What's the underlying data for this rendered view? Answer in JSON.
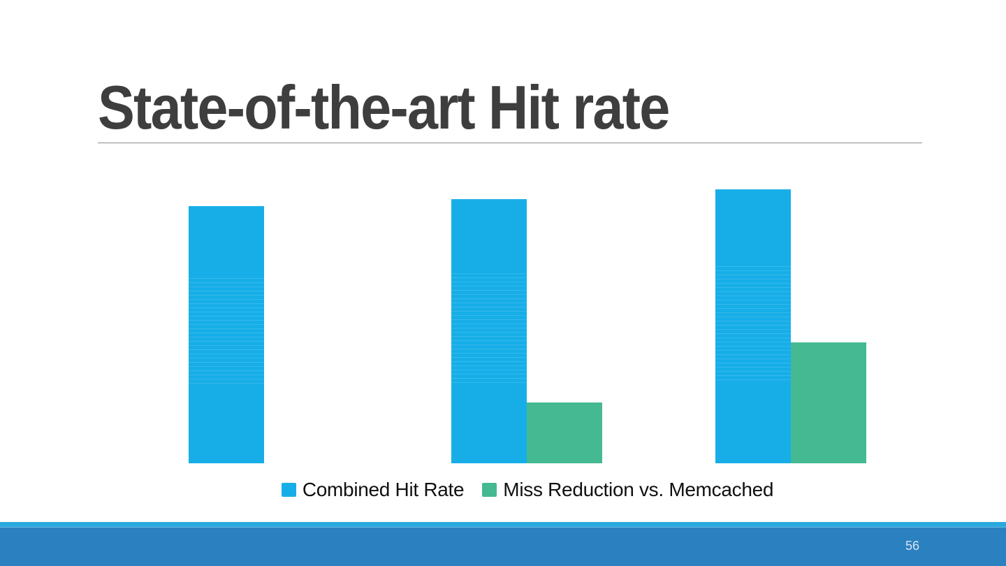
{
  "slide": {
    "title": "State-of-the-art Hit rate",
    "page_number": "56"
  },
  "theme": {
    "title_color": "#3E3E3E",
    "divider_color": "#8C8C8C",
    "bar_blue": "#17AEE8",
    "bar_green": "#44B992",
    "footer_stripe_color": "#29A9DF",
    "footer_bar_color": "#2B80C0",
    "page_number_color": "#D7E5F2"
  },
  "chart_data": {
    "type": "bar",
    "categories": [
      "",
      "",
      ""
    ],
    "series": [
      {
        "name": "Combined Hit Rate",
        "color": "#17AEE8",
        "values": [
          89,
          91.5,
          95
        ]
      },
      {
        "name": "Miss Reduction vs. Memcached",
        "color": "#44B992",
        "values": [
          0,
          21,
          42
        ]
      }
    ],
    "title": "",
    "xlabel": "",
    "ylabel": "",
    "ylim": [
      0,
      100
    ],
    "grid": false,
    "axes_visible": false,
    "value_labels": false,
    "legend_position": "bottom"
  }
}
